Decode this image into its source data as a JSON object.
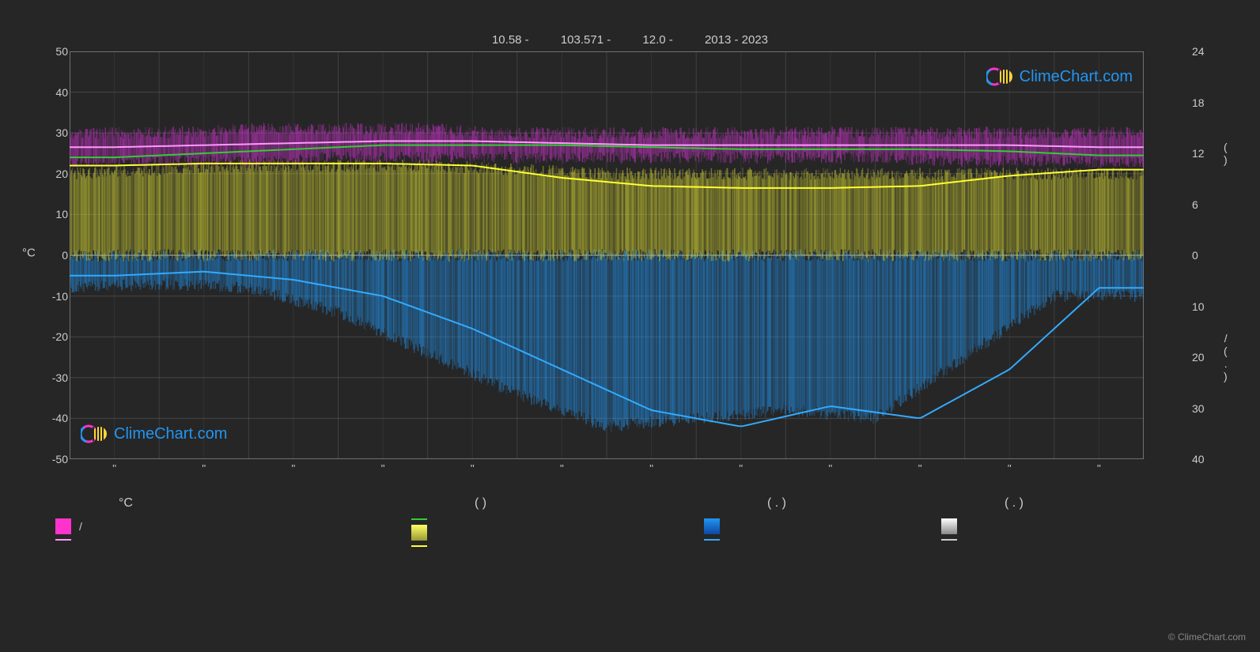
{
  "header": {
    "lat": "10.58 -",
    "lon": "103.571 -",
    "elev": "12.0 -",
    "years": "2013 - 2023"
  },
  "logo": {
    "text": "ClimeChart.com",
    "color": "#2196f3"
  },
  "copyright": "© ClimeChart.com",
  "chart": {
    "type": "climate-chart",
    "background_color": "#262626",
    "grid_color": "#5a5a5a",
    "grid_major_x": [
      0,
      1,
      2,
      3,
      4,
      5,
      6,
      7,
      8,
      9,
      10,
      11,
      12
    ],
    "months_labels": [
      "''",
      "''",
      "''",
      "''",
      "''",
      "''",
      "''",
      "''",
      "''",
      "''",
      "''",
      "''"
    ],
    "y_left": {
      "label": "°C",
      "min": -50,
      "max": 50,
      "step": 10,
      "ticks": [
        50,
        40,
        30,
        20,
        10,
        0,
        -10,
        -20,
        -30,
        -40,
        -50
      ],
      "text_color": "#cccccc"
    },
    "y_right_upper": {
      "label": "(     )",
      "min": 0,
      "max": 24,
      "ticks": [
        24,
        18,
        12,
        6,
        0
      ],
      "text_color": "#cccccc"
    },
    "y_right_lower": {
      "label": "/   (  . )",
      "min": 0,
      "max": 40,
      "ticks": [
        0,
        10,
        20,
        30,
        40
      ],
      "text_color": "#cccccc"
    },
    "series": {
      "temp_band": {
        "type": "area-noise",
        "color": "#d633d6",
        "opacity": 0.55,
        "top_values": [
          30,
          30,
          31,
          31,
          31,
          30,
          30,
          30,
          30,
          30,
          30,
          30
        ],
        "bottom_values": [
          23,
          23,
          23,
          24,
          24,
          24,
          24,
          24,
          24,
          24,
          23,
          23
        ]
      },
      "temp_avg_line": {
        "type": "line",
        "color": "#ff99ff",
        "width": 2,
        "values": [
          26.5,
          27,
          27.5,
          28,
          28,
          27.5,
          27,
          27,
          27,
          27,
          27,
          26.5
        ]
      },
      "temp_mean_line": {
        "type": "line",
        "color": "#33cc33",
        "width": 2,
        "values": [
          24,
          25,
          26,
          27,
          27,
          27,
          26.5,
          26,
          26,
          26,
          25.5,
          24.5
        ]
      },
      "sun_band": {
        "type": "area-noise",
        "color": "#cccc33",
        "opacity": 0.6,
        "top_values": [
          20,
          21,
          22,
          22,
          22,
          21,
          20,
          20,
          20,
          20,
          20,
          20
        ],
        "bottom_values": [
          0,
          0,
          0,
          0,
          0,
          0,
          0,
          0,
          0,
          0,
          0,
          0
        ]
      },
      "sun_avg_line": {
        "type": "line",
        "color": "#ffff33",
        "width": 2,
        "values": [
          22,
          22.5,
          22.5,
          22.5,
          22,
          19,
          17,
          16.5,
          16.5,
          17,
          19.5,
          21
        ]
      },
      "precip_bars": {
        "type": "area-noise-down",
        "color": "#2196f3",
        "opacity": 0.55,
        "top_values": [
          0,
          0,
          0,
          0,
          0,
          0,
          0,
          0,
          0,
          0,
          0,
          0
        ],
        "bottom_values": [
          -8,
          -7,
          -8,
          -14,
          -24,
          -34,
          -42,
          -40,
          -38,
          -40,
          -25,
          -10
        ]
      },
      "precip_avg_line": {
        "type": "line",
        "color": "#33aaff",
        "width": 2,
        "values": [
          -5,
          -4,
          -6,
          -10,
          -18,
          -28,
          -38,
          -42,
          -37,
          -40,
          -28,
          -8
        ]
      }
    }
  },
  "legend": {
    "columns": [
      {
        "x": 0,
        "header": "°C",
        "items": [
          {
            "swatch": {
              "type": "rect",
              "color": "#ff33cc"
            },
            "label": "            /"
          },
          {
            "swatch": {
              "type": "line",
              "color": "#ff99ff"
            },
            "label": ""
          }
        ]
      },
      {
        "x": 450,
        "header": "(        )",
        "items": [
          {
            "swatch": {
              "type": "line",
              "color": "#33cc33"
            },
            "label": ""
          },
          {
            "swatch": {
              "type": "grad",
              "from": "#ffff66",
              "to": "#999933"
            },
            "label": ""
          },
          {
            "swatch": {
              "type": "line",
              "color": "#ffff33"
            },
            "label": ""
          }
        ]
      },
      {
        "x": 820,
        "header": "(   . )",
        "items": [
          {
            "swatch": {
              "type": "grad",
              "from": "#2196f3",
              "to": "#0d47a1"
            },
            "label": ""
          },
          {
            "swatch": {
              "type": "line",
              "color": "#33aaff"
            },
            "label": ""
          }
        ]
      },
      {
        "x": 1120,
        "header": "(   . )",
        "items": [
          {
            "swatch": {
              "type": "grad",
              "from": "#ffffff",
              "to": "#888888"
            },
            "label": ""
          },
          {
            "swatch": {
              "type": "line",
              "color": "#cccccc"
            },
            "label": ""
          }
        ]
      }
    ]
  }
}
